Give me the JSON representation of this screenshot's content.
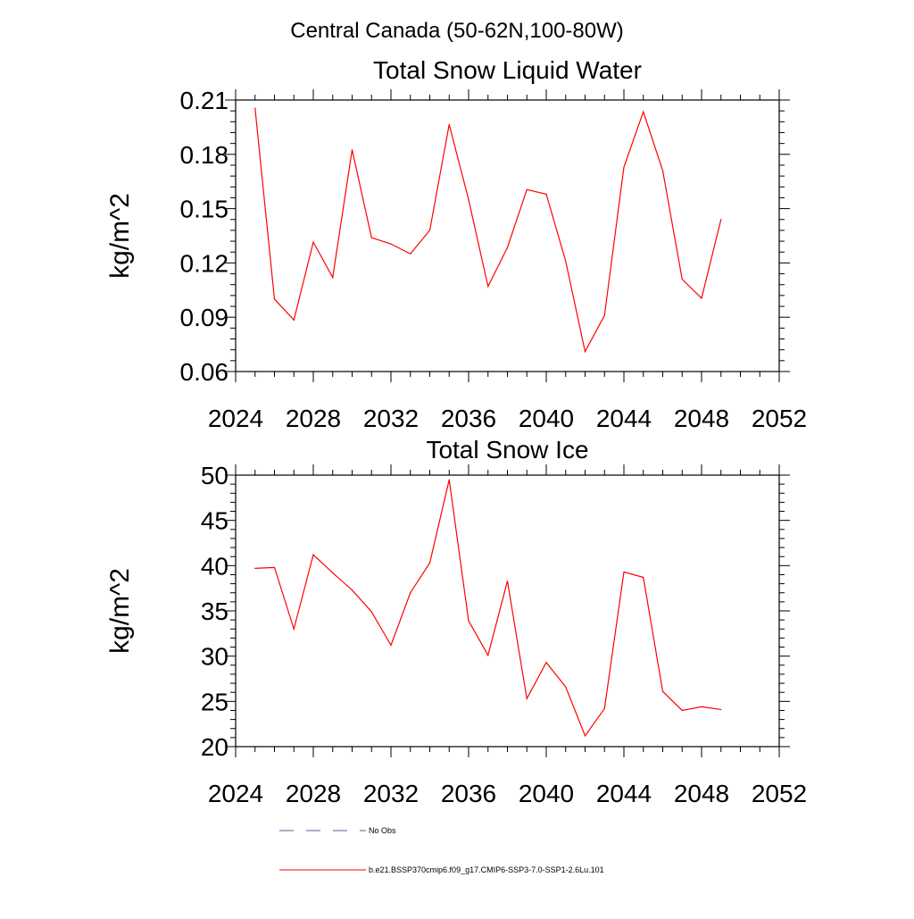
{
  "figure": {
    "title": "Central Canada (50-62N,100-80W)"
  },
  "chart_data": [
    {
      "type": "line",
      "title": "Total Snow Liquid Water",
      "xlabel": "",
      "ylabel": "kg/m^2",
      "xlim": [
        2024,
        2052
      ],
      "ylim": [
        0.06,
        0.21
      ],
      "x_ticks": [
        "2024",
        "2028",
        "2032",
        "2036",
        "2040",
        "2044",
        "2048",
        "2052"
      ],
      "y_ticks": [
        "0.06",
        "0.09",
        "0.12",
        "0.15",
        "0.18",
        "0.21"
      ],
      "series": [
        {
          "name": "b.e21.BSSP370cmip6.f09_g17.CMIP6-SSP3-7.0-SSP1-2.6Lu.101",
          "color": "#ff0000",
          "x": [
            2025,
            2026,
            2027,
            2028,
            2029,
            2030,
            2031,
            2032,
            2033,
            2034,
            2035,
            2036,
            2037,
            2038,
            2039,
            2040,
            2041,
            2042,
            2043,
            2044,
            2045,
            2046,
            2047,
            2048,
            2049
          ],
          "y": [
            0.2055,
            0.1,
            0.0885,
            0.1315,
            0.112,
            0.1825,
            0.134,
            0.1305,
            0.125,
            0.138,
            0.1965,
            0.155,
            0.107,
            0.1285,
            0.1605,
            0.158,
            0.121,
            0.071,
            0.091,
            0.173,
            0.2035,
            0.171,
            0.111,
            0.1005,
            0.144
          ]
        }
      ]
    },
    {
      "type": "line",
      "title": "Total Snow Ice",
      "xlabel": "",
      "ylabel": "kg/m^2",
      "xlim": [
        2024,
        2052
      ],
      "ylim": [
        20,
        50
      ],
      "x_ticks": [
        "2024",
        "2028",
        "2032",
        "2036",
        "2040",
        "2044",
        "2048",
        "2052"
      ],
      "y_ticks": [
        "20",
        "25",
        "30",
        "35",
        "40",
        "45",
        "50"
      ],
      "series": [
        {
          "name": "b.e21.BSSP370cmip6.f09_g17.CMIP6-SSP3-7.0-SSP1-2.6Lu.101",
          "color": "#ff0000",
          "x": [
            2025,
            2026,
            2027,
            2028,
            2029,
            2030,
            2031,
            2032,
            2033,
            2034,
            2035,
            2036,
            2037,
            2038,
            2039,
            2040,
            2041,
            2042,
            2043,
            2044,
            2045,
            2046,
            2047,
            2048,
            2049
          ],
          "y": [
            39.7,
            39.8,
            33.0,
            41.2,
            39.2,
            37.3,
            34.9,
            31.2,
            37.0,
            40.3,
            49.5,
            33.9,
            30.1,
            38.3,
            25.3,
            29.3,
            26.6,
            21.2,
            24.2,
            39.3,
            38.7,
            26.1,
            24.0,
            24.4,
            24.1
          ]
        }
      ]
    }
  ],
  "legend": {
    "placement": "bottom",
    "entries": [
      {
        "label": "No Obs",
        "style": "dashed",
        "color": "#5a5a9a"
      },
      {
        "label": "b.e21.BSSP370cmip6.f09_g17.CMIP6-SSP3-7.0-SSP1-2.6Lu.101",
        "style": "solid",
        "color": "#ff0000"
      }
    ]
  }
}
